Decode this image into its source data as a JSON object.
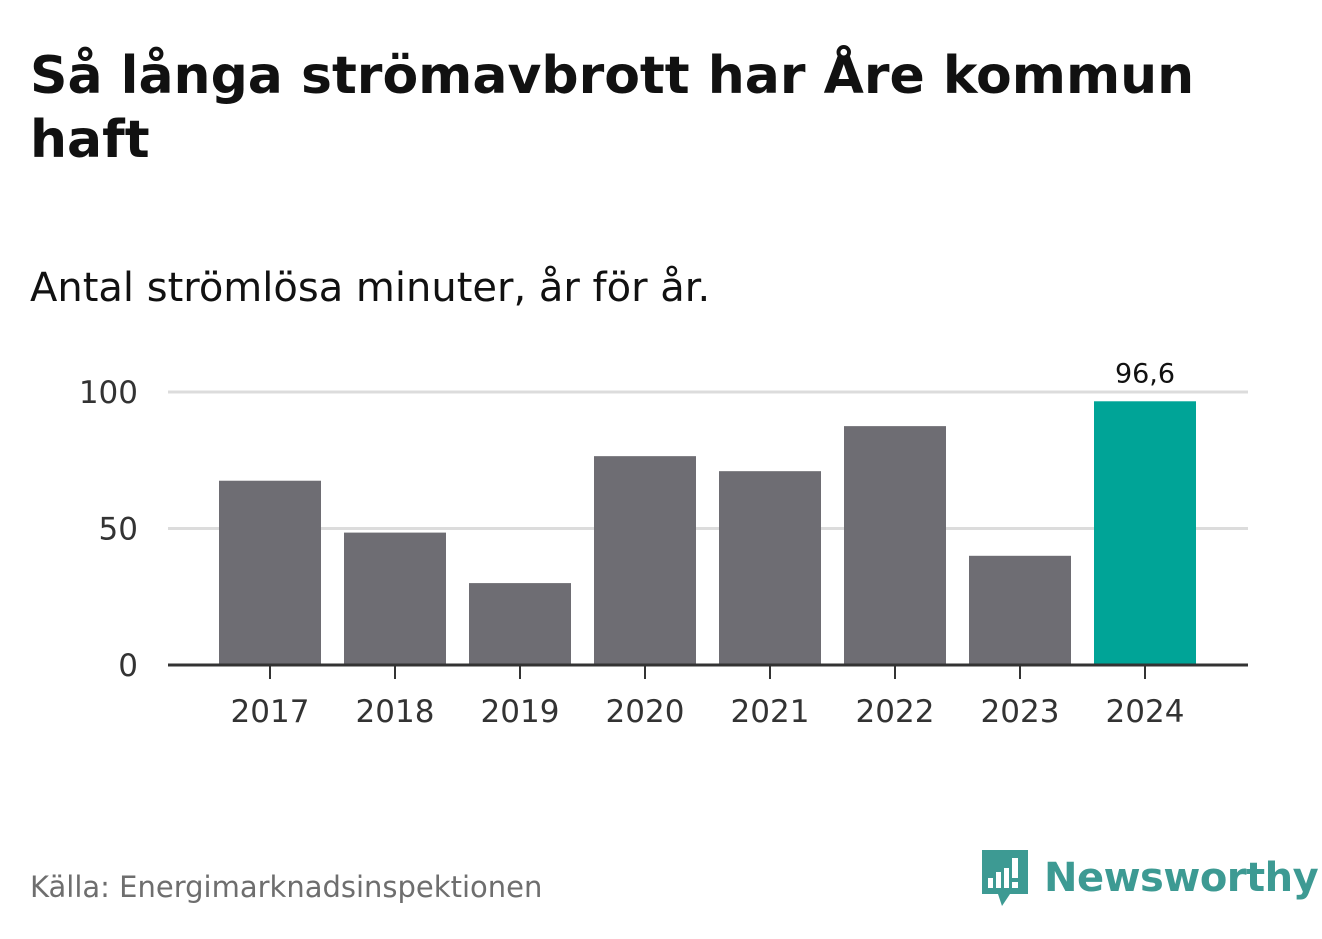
{
  "title": "Så långa strömavbrott har Åre kommun haft",
  "subtitle": "Antal strömlösa minuter, år för år.",
  "source": "Källa: Energimarknadsinspektionen",
  "brand": "Newsworthy",
  "colors": {
    "bar": "#6e6d73",
    "highlight": "#00a497",
    "grid": "#dcdcdc",
    "axis": "#333333",
    "brand": "#3d9a93"
  },
  "chart_data": {
    "type": "bar",
    "title": "Så långa strömavbrott har Åre kommun haft",
    "subtitle": "Antal strömlösa minuter, år för år.",
    "xlabel": "",
    "ylabel": "",
    "categories": [
      "2017",
      "2018",
      "2019",
      "2020",
      "2021",
      "2022",
      "2023",
      "2024"
    ],
    "values": [
      67.5,
      48.5,
      30,
      76.5,
      71,
      87.5,
      40,
      96.6
    ],
    "highlight_index": 7,
    "data_labels": [
      {
        "index": 7,
        "text": "96,6"
      }
    ],
    "ylim": [
      0,
      100
    ],
    "yticks": [
      0,
      50,
      100
    ],
    "ytick_labels": [
      "0",
      "50",
      "100"
    ],
    "grid": true,
    "legend": "none"
  }
}
